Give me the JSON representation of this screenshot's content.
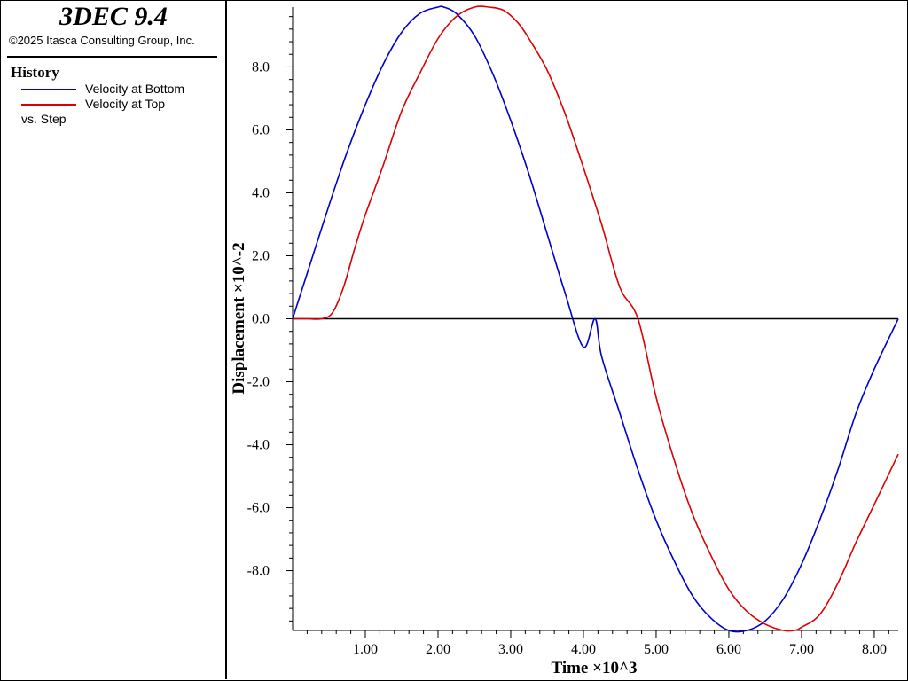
{
  "header": {
    "app_title": "3DEC 9.4",
    "copyright": "©2025 Itasca Consulting Group, Inc."
  },
  "legend": {
    "heading": "History",
    "entries": [
      {
        "label": "Velocity at Bottom",
        "color": "#0000cc"
      },
      {
        "label": "Velocity at Top",
        "color": "#dd0000"
      }
    ],
    "versus": "vs. Step"
  },
  "chart_data": {
    "type": "line",
    "xlabel": "Time ×10^3",
    "ylabel": "Displacement ×10^-2",
    "xlim": [
      0.0,
      8.33
    ],
    "ylim": [
      -9.9,
      9.9
    ],
    "x_ticks": [
      1.0,
      2.0,
      3.0,
      4.0,
      5.0,
      6.0,
      7.0,
      8.0
    ],
    "x_tick_labels": [
      "1.00",
      "2.00",
      "3.00",
      "4.00",
      "5.00",
      "6.00",
      "7.00",
      "8.00"
    ],
    "y_ticks": [
      8.0,
      6.0,
      4.0,
      2.0,
      0.0,
      -2.0,
      -4.0,
      -6.0,
      -8.0
    ],
    "y_tick_labels": [
      "8.0",
      "6.0",
      "4.0",
      "2.0",
      "0.0",
      "-2.0",
      "-4.0",
      "-6.0",
      "-8.0"
    ],
    "grid": false,
    "zero_line": true,
    "series": [
      {
        "name": "Velocity at Bottom",
        "color": "#0000cc",
        "x": [
          0.0,
          0.25,
          0.5,
          0.75,
          1.0,
          1.25,
          1.5,
          1.75,
          2.0,
          2.08,
          2.25,
          2.5,
          2.75,
          3.0,
          3.25,
          3.5,
          3.75,
          4.0,
          4.16,
          4.25,
          4.5,
          4.75,
          5.0,
          5.25,
          5.5,
          5.75,
          6.0,
          6.25,
          6.5,
          6.75,
          7.0,
          7.25,
          7.5,
          7.75,
          8.0,
          8.33
        ],
        "y": [
          0.0,
          1.8,
          3.6,
          5.3,
          6.8,
          8.1,
          9.1,
          9.7,
          9.9,
          9.9,
          9.7,
          9.0,
          7.8,
          6.3,
          4.6,
          2.7,
          0.8,
          -0.9,
          0.0,
          -1.2,
          -3.0,
          -4.8,
          -6.4,
          -7.7,
          -8.8,
          -9.5,
          -9.9,
          -9.9,
          -9.6,
          -8.9,
          -7.8,
          -6.4,
          -4.8,
          -3.0,
          -1.6,
          0.0
        ]
      },
      {
        "name": "Velocity at Top",
        "color": "#dd0000",
        "x": [
          0.0,
          0.2,
          0.4,
          0.55,
          0.7,
          0.85,
          1.0,
          1.25,
          1.5,
          1.75,
          2.0,
          2.25,
          2.5,
          2.7,
          2.9,
          3.1,
          3.25,
          3.5,
          3.75,
          4.0,
          4.25,
          4.5,
          4.75,
          5.0,
          5.25,
          5.5,
          5.75,
          6.0,
          6.25,
          6.5,
          6.75,
          6.9,
          7.0,
          7.25,
          7.5,
          7.75,
          8.0,
          8.33
        ],
        "y": [
          0.0,
          0.0,
          0.0,
          0.2,
          1.0,
          2.2,
          3.3,
          4.9,
          6.6,
          7.8,
          8.9,
          9.6,
          9.9,
          9.9,
          9.8,
          9.4,
          8.9,
          7.9,
          6.5,
          4.8,
          3.0,
          1.0,
          0.0,
          -2.5,
          -4.5,
          -6.2,
          -7.5,
          -8.6,
          -9.3,
          -9.7,
          -9.9,
          -9.9,
          -9.8,
          -9.4,
          -8.4,
          -7.1,
          -5.9,
          -4.3
        ]
      }
    ]
  }
}
